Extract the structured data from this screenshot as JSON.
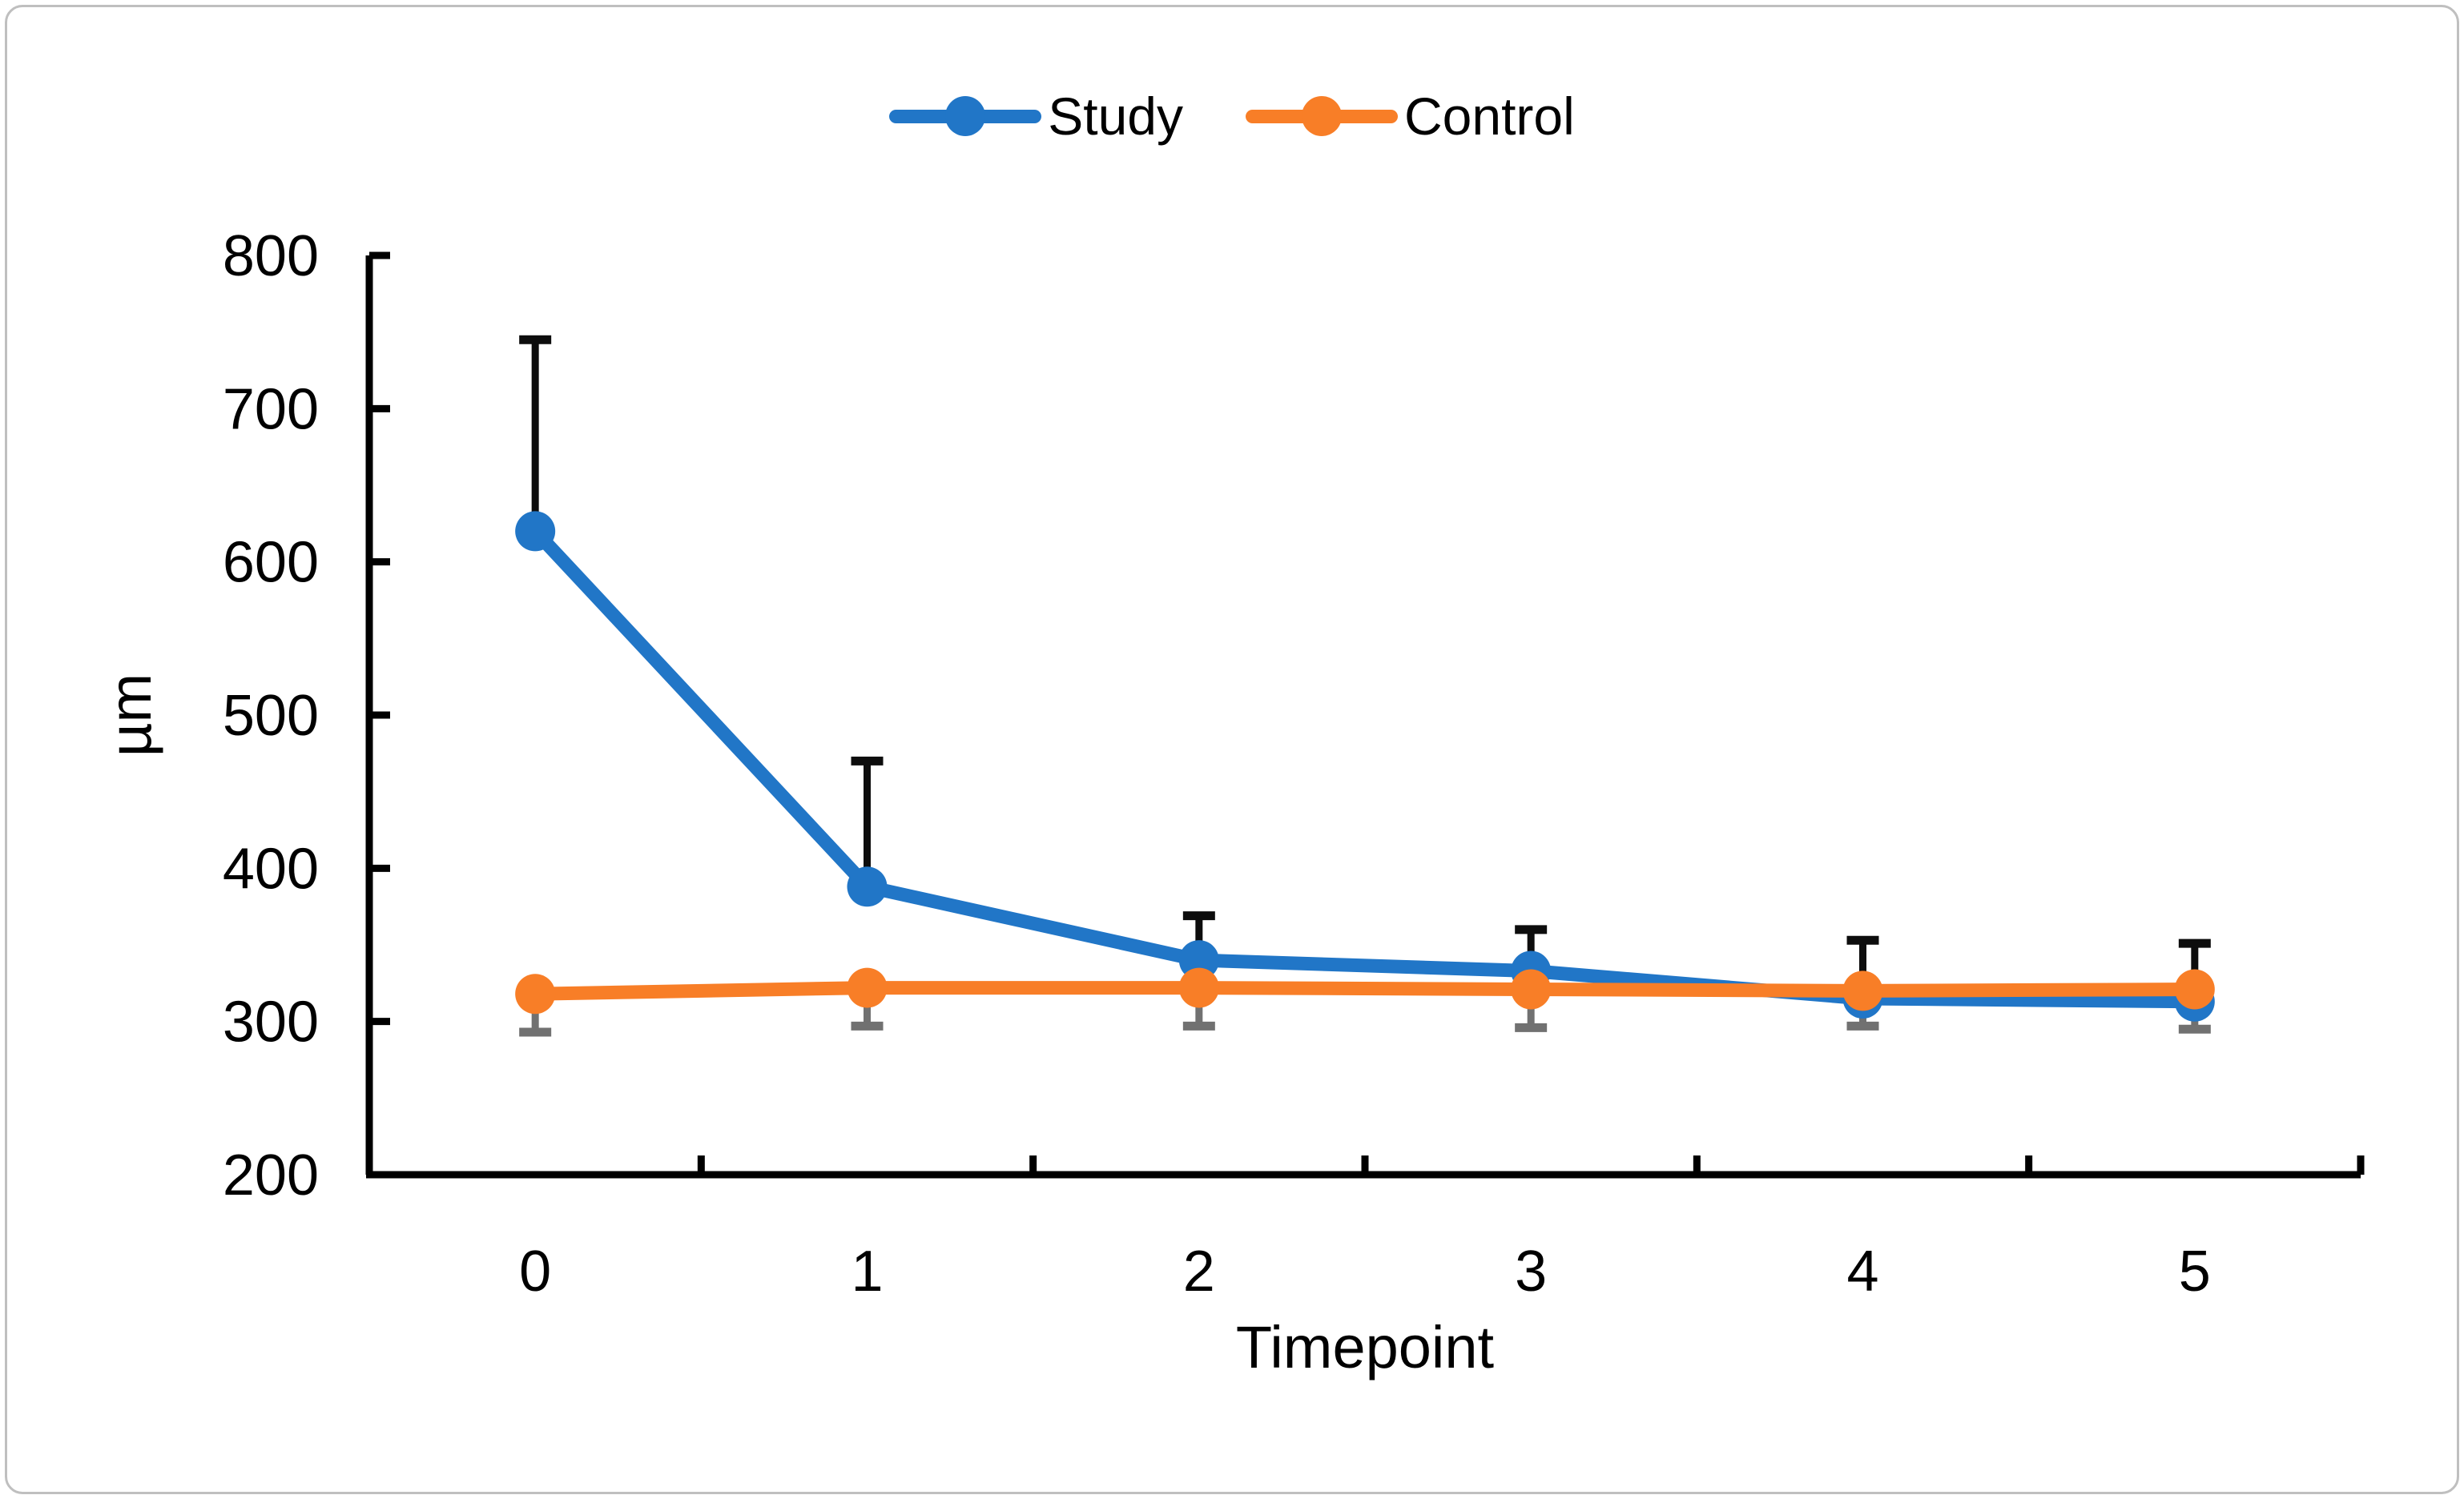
{
  "chart_data": {
    "type": "line",
    "title": "",
    "x": {
      "label": "Timepoint",
      "categories": [
        "0",
        "1",
        "2",
        "3",
        "4",
        "5"
      ]
    },
    "y": {
      "label": "µm",
      "min": 200,
      "max": 800,
      "tick_step": 100,
      "ticks": [
        200,
        300,
        400,
        500,
        600,
        700,
        800
      ]
    },
    "series": [
      {
        "name": "Study",
        "color": "#2176C7",
        "marker": "circle",
        "values": [
          620,
          388,
          340,
          333,
          315,
          313
        ],
        "error_plus": [
          125,
          82,
          29,
          27,
          38,
          38
        ]
      },
      {
        "name": "Control",
        "color": "#F87E27",
        "marker": "circle",
        "values": [
          318,
          322,
          322,
          321,
          320,
          321
        ],
        "error_minus": [
          25,
          25,
          25,
          25,
          23,
          26
        ]
      }
    ],
    "error_bar_colors": {
      "plus": "#0d0d0d",
      "minus": "#717171"
    },
    "legend": {
      "position": "top",
      "entries": [
        "Study",
        "Control"
      ]
    },
    "grid": false,
    "axis_color": "#000000"
  }
}
